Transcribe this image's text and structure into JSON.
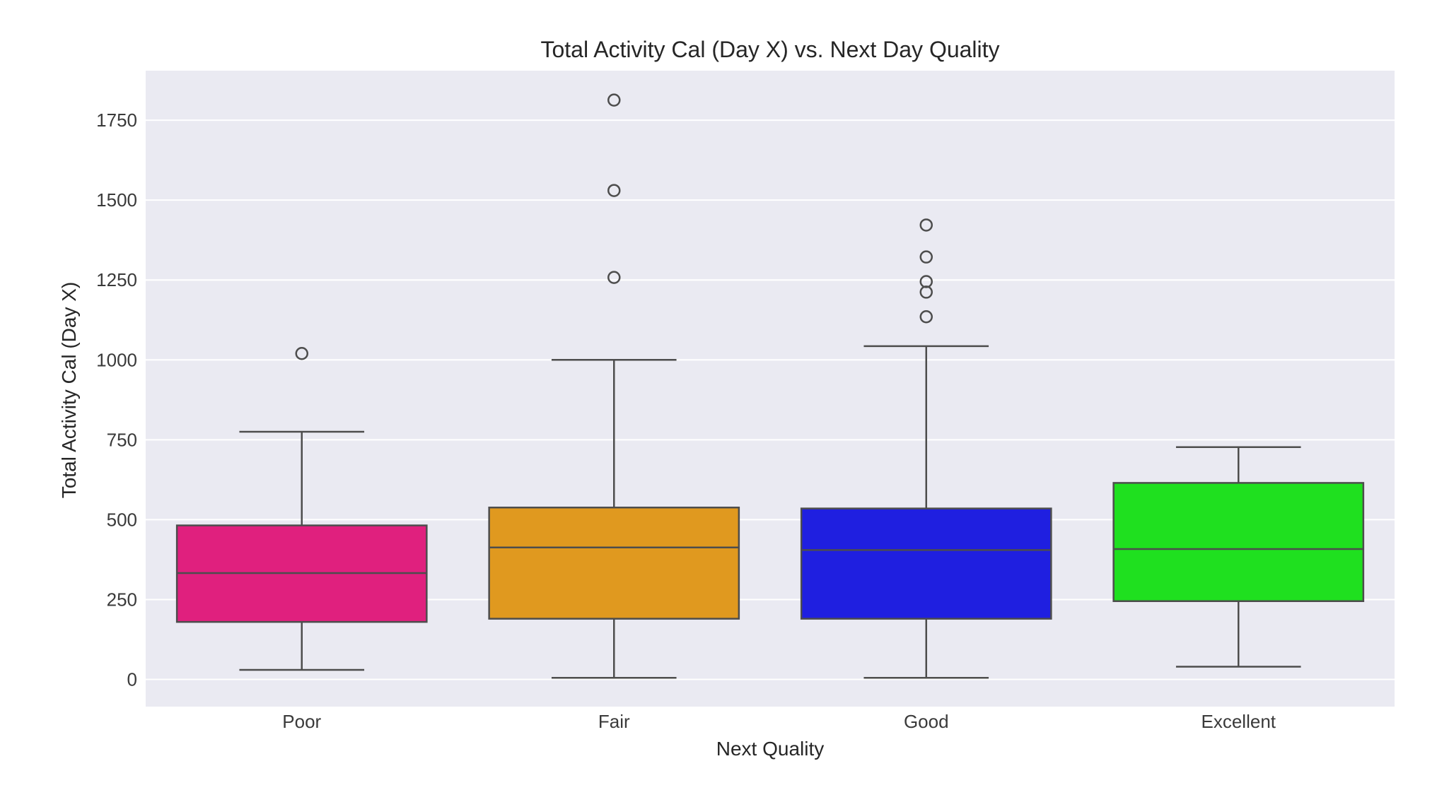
{
  "chart_data": {
    "type": "box",
    "title": "Total Activity Cal (Day X) vs. Next Day Quality",
    "xlabel": "Next Quality",
    "ylabel": "Total Activity Cal (Day X)",
    "ylim": [
      -85,
      1905
    ],
    "yticks": [
      0,
      250,
      500,
      750,
      1000,
      1250,
      1500,
      1750
    ],
    "grid": true,
    "legend": null,
    "categories": [
      "Poor",
      "Fair",
      "Good",
      "Excellent"
    ],
    "series": [
      {
        "name": "Poor",
        "color": "#e0207e",
        "whisker_low": 30,
        "q1": 180,
        "median": 333,
        "q3": 482,
        "whisker_high": 775,
        "outliers": [
          1020
        ]
      },
      {
        "name": "Fair",
        "color": "#e0991f",
        "whisker_low": 5,
        "q1": 190,
        "median": 413,
        "q3": 538,
        "whisker_high": 1000,
        "outliers": [
          1258,
          1530,
          1813
        ]
      },
      {
        "name": "Good",
        "color": "#1f1fe0",
        "whisker_low": 5,
        "q1": 190,
        "median": 405,
        "q3": 535,
        "whisker_high": 1043,
        "outliers": [
          1135,
          1212,
          1245,
          1322,
          1422
        ]
      },
      {
        "name": "Excellent",
        "color": "#1fe01f",
        "whisker_low": 40,
        "q1": 245,
        "median": 408,
        "q3": 615,
        "whisker_high": 727,
        "outliers": []
      }
    ]
  },
  "style": {
    "plot_bg": "#eaeaf2",
    "grid_color": "#ffffff",
    "line_color": "#4d4d4d"
  }
}
